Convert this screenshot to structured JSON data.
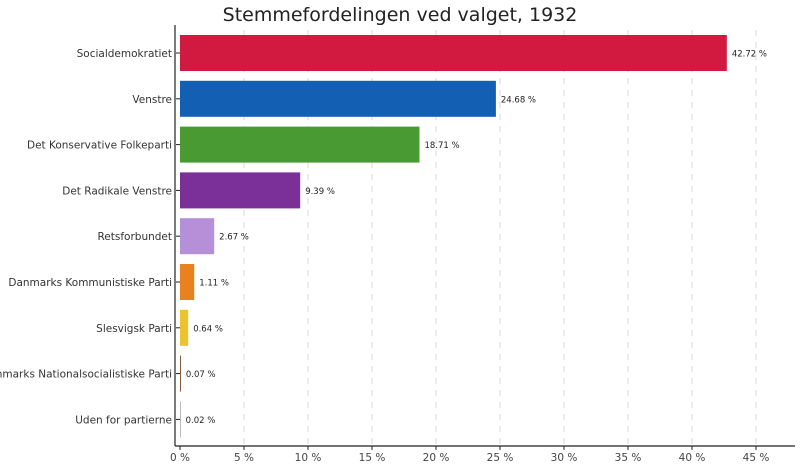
{
  "chart_data": {
    "type": "bar",
    "orientation": "horizontal",
    "title": "Stemmefordelingen ved valget, 1932",
    "xlabel": "",
    "ylabel": "",
    "categories": [
      "Socialdemokratiet",
      "Venstre",
      "Det Konservative Folkeparti",
      "Det Radikale Venstre",
      "Retsforbundet",
      "Danmarks Kommunistiske Parti",
      "Slesvigsk Parti",
      "Danmarks Nationalsocialistiske Parti",
      "Uden for partierne"
    ],
    "values": [
      42.72,
      24.68,
      18.71,
      9.39,
      2.67,
      1.11,
      0.64,
      0.07,
      0.02
    ],
    "data_labels": [
      "42.72 %",
      "24.68 %",
      "18.71 %",
      "9.39 %",
      "2.67 %",
      "1.11 %",
      "0.64 %",
      "0.07 %",
      "0.02 %"
    ],
    "colors": [
      "#d21a40",
      "#125fb4",
      "#4a9a34",
      "#7b2f99",
      "#b58fd8",
      "#e8821e",
      "#ecc32f",
      "#7a4a2a",
      "#8a8a8a"
    ],
    "xlim": [
      0,
      47
    ],
    "x_ticks": [
      0,
      5,
      10,
      15,
      20,
      25,
      30,
      35,
      40,
      45
    ],
    "x_tick_labels": [
      "0 %",
      "5 %",
      "10 %",
      "15 %",
      "20 %",
      "25 %",
      "30 %",
      "35 %",
      "40 %",
      "45 %"
    ],
    "grid": "vertical dashed",
    "legend": "none"
  }
}
